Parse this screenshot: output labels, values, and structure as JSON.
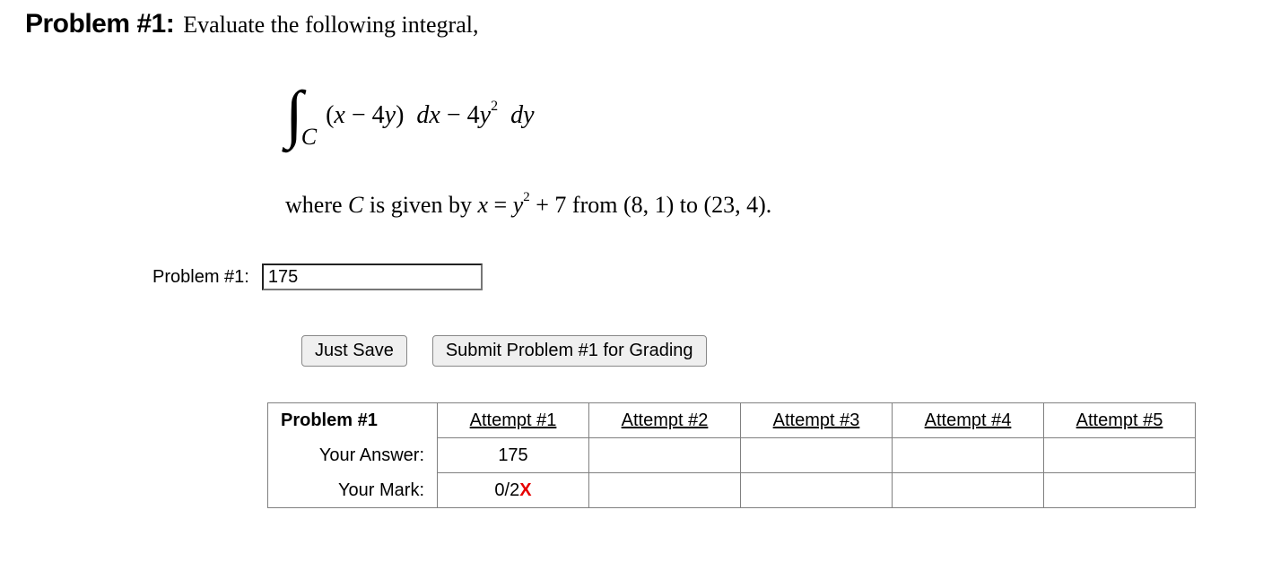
{
  "header": {
    "title": "Problem #1:",
    "prompt": "Evaluate the following integral,"
  },
  "math": {
    "integral_symbol": "∫",
    "subscript": "C",
    "integrand_open": "(",
    "x": "x",
    "minus": " − ",
    "coef1": "4",
    "y": "y",
    "integrand_close": ")",
    "dx": "dx",
    "spaced_minus": "  −  ",
    "coef2": "4",
    "y2": "y",
    "sup2": "2",
    "dy": "dy"
  },
  "condition": {
    "prefix": "where ",
    "C_ital": "C",
    "mid1": " is given by ",
    "x": " x ",
    "eq": " = ",
    "y": " y",
    "sup2": "2",
    "plus": " + 7 ",
    "mid2": " from (8, 1) to (23, 4)."
  },
  "answer": {
    "label": "Problem #1:",
    "value": "175"
  },
  "buttons": {
    "save": "Just Save",
    "submit": "Submit Problem #1 for Grading"
  },
  "table": {
    "corner": "Problem #1",
    "attempts": [
      "Attempt #1",
      "Attempt #2",
      "Attempt #3",
      "Attempt #4",
      "Attempt #5"
    ],
    "row_answer_label": "Your Answer:",
    "row_mark_label": "Your Mark:",
    "answers": [
      "175",
      "",
      "",
      "",
      ""
    ],
    "marks_prefix": [
      "0/2",
      "",
      "",
      "",
      ""
    ],
    "marks_x": [
      "X",
      "",
      "",
      "",
      ""
    ]
  },
  "colors": {
    "wrong": "#e60000",
    "border": "#808080",
    "button_bg": "#efefef",
    "text": "#000000",
    "bg": "#ffffff"
  }
}
